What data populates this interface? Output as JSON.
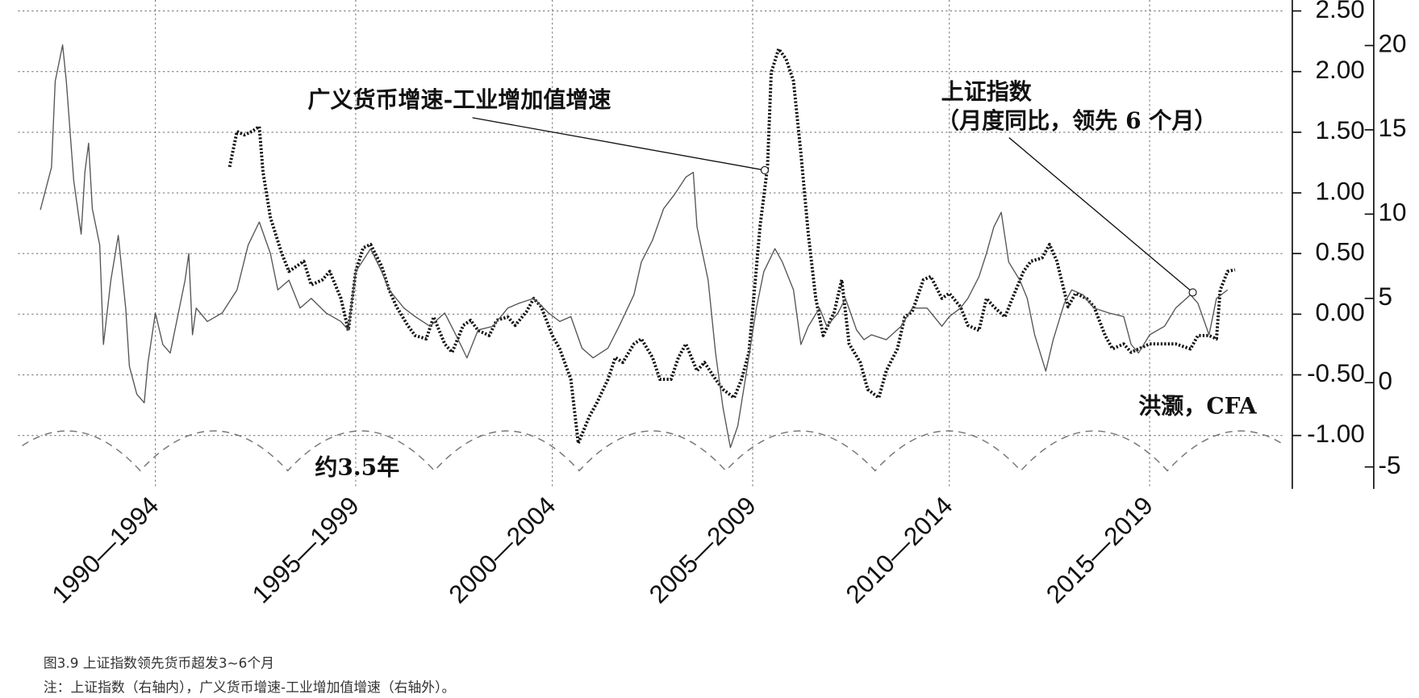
{
  "chart_data": {
    "type": "line",
    "xlim": [
      1989,
      2023.15
    ],
    "xticks": [
      {
        "value": 1992.7,
        "label": "1990—1994"
      },
      {
        "value": 1998.1,
        "label": "1995—1999"
      },
      {
        "value": 2003.4,
        "label": "2000—2004"
      },
      {
        "value": 2008.8,
        "label": "2005—2009"
      },
      {
        "value": 2014.1,
        "label": "2010—2014"
      },
      {
        "value": 2019.5,
        "label": "2015—2019"
      }
    ],
    "ylim": [
      -1.44,
      2.59
    ],
    "yticks": [
      {
        "value": 2.5,
        "label": "2.50"
      },
      {
        "value": 2,
        "label": "2.00"
      },
      {
        "value": 1.5,
        "label": "1.50"
      },
      {
        "value": 1,
        "label": "1.00"
      },
      {
        "value": 0.5,
        "label": "0.50"
      },
      {
        "value": 0,
        "label": "0.00"
      },
      {
        "value": -0.5,
        "label": "-0.50"
      },
      {
        "value": -1,
        "label": "-1.00"
      }
    ],
    "y2lim": [
      -6.3,
      22.7
    ],
    "y2ticks": [
      20,
      15,
      10,
      5,
      0,
      -5
    ],
    "grid": true,
    "series": [
      {
        "name": "广义货币增速-工业增加值增速",
        "color": "#111111",
        "line_style": "dotted",
        "axis": "y2",
        "x": [
          1994.7,
          1994.9,
          1995.1,
          1995.3,
          1995.5,
          1995.6,
          1995.8,
          1996.1,
          1996.3,
          1996.7,
          1996.9,
          1997.2,
          1997.4,
          1997.7,
          1997.9,
          1998.1,
          1998.3,
          1998.5,
          1998.8,
          1999.0,
          1999.2,
          1999.5,
          1999.7,
          2000.0,
          2000.2,
          2000.5,
          2000.7,
          2001.0,
          2001.2,
          2001.4,
          2001.7,
          2001.9,
          2002.2,
          2002.4,
          2002.7,
          2002.9,
          2003.1,
          2003.4,
          2003.6,
          2003.9,
          2004.1,
          2004.4,
          2004.6,
          2004.9,
          2005.1,
          2005.3,
          2005.6,
          2005.8,
          2006.1,
          2006.3,
          2006.6,
          2006.8,
          2007.0,
          2007.3,
          2007.5,
          2007.8,
          2008.0,
          2008.3,
          2008.5,
          2008.7,
          2009.0,
          2009.2,
          2009.3,
          2009.5,
          2009.7,
          2009.9,
          2010.1,
          2010.3,
          2010.5,
          2010.7,
          2011.0,
          2011.2,
          2011.4,
          2011.7,
          2011.9,
          2012.2,
          2012.4,
          2012.7,
          2012.9,
          2013.1,
          2013.4,
          2013.6,
          2013.9,
          2014.1,
          2014.4,
          2014.6,
          2014.9,
          2015.1,
          2015.3,
          2015.6,
          2015.8,
          2016.1,
          2016.3,
          2016.6,
          2016.8,
          2017.0,
          2017.3,
          2017.5,
          2017.8,
          2018.0,
          2018.3,
          2018.5,
          2018.8,
          2019.0,
          2019.2,
          2019.5,
          2019.9,
          2020.2,
          2020.6,
          2020.8,
          2021.1,
          2021.3,
          2021.4,
          2021.6,
          2021.8
        ],
        "values": [
          12.8,
          14.9,
          14.7,
          14.9,
          15.2,
          12.5,
          9.8,
          7.7,
          6.6,
          7.2,
          5.8,
          6.1,
          6.6,
          5.0,
          3.1,
          6.6,
          8.0,
          8.2,
          6.9,
          5.5,
          4.5,
          3.4,
          2.8,
          2.6,
          3.9,
          2.3,
          1.8,
          3.4,
          3.7,
          3.1,
          2.8,
          3.7,
          3.9,
          3.4,
          4.2,
          5.0,
          4.5,
          2.8,
          2.0,
          0.2,
          -3.6,
          -2.0,
          -1.2,
          0.2,
          1.5,
          1.2,
          2.3,
          2.6,
          1.5,
          0.2,
          0.2,
          1.5,
          2.3,
          0.7,
          1.2,
          0.2,
          -0.4,
          -0.9,
          0.2,
          1.8,
          9.3,
          12.8,
          18.4,
          19.8,
          19.2,
          17.9,
          13.6,
          8.8,
          5.0,
          2.8,
          4.2,
          6.1,
          2.3,
          1.2,
          -0.4,
          -0.9,
          0.7,
          2.0,
          3.9,
          4.2,
          6.1,
          6.3,
          5.0,
          5.3,
          4.5,
          3.4,
          3.1,
          5.0,
          4.5,
          3.9,
          5.0,
          6.6,
          7.2,
          7.4,
          8.2,
          7.2,
          4.5,
          5.3,
          5.0,
          4.5,
          2.8,
          2.0,
          2.3,
          1.8,
          2.0,
          2.3,
          2.3,
          2.3,
          2.0,
          2.8,
          2.8,
          2.6,
          5.5,
          6.6,
          6.7
        ]
      },
      {
        "name": "上证指数",
        "note": "（月度同比，领先 6 个月）",
        "color": "#555555",
        "line_style": "solid",
        "x": [
          1989.6,
          1989.9,
          1990.0,
          1990.2,
          1990.3,
          1990.5,
          1990.7,
          1990.8,
          1990.9,
          1991.0,
          1991.2,
          1991.3,
          1991.5,
          1991.7,
          1991.9,
          1992.0,
          1992.2,
          1992.4,
          1992.5,
          1992.7,
          1992.9,
          1993.1,
          1993.3,
          1993.5,
          1993.6,
          1993.7,
          1993.8,
          1994.1,
          1994.5,
          1994.9,
          1995.2,
          1995.5,
          1995.8,
          1996.0,
          1996.3,
          1996.6,
          1996.9,
          1997.3,
          1997.7,
          1997.9,
          1998.1,
          1998.5,
          1998.8,
          1999.0,
          1999.4,
          1999.7,
          2000.1,
          2000.5,
          2000.8,
          2001.1,
          2001.4,
          2001.8,
          2002.2,
          2002.5,
          2002.9,
          2003.3,
          2003.6,
          2003.9,
          2004.2,
          2004.5,
          2004.9,
          2005.2,
          2005.6,
          2005.8,
          2006.1,
          2006.4,
          2006.7,
          2007.0,
          2007.2,
          2007.3,
          2007.6,
          2007.8,
          2008.0,
          2008.2,
          2008.4,
          2008.6,
          2008.9,
          2009.1,
          2009.4,
          2009.6,
          2009.9,
          2010.1,
          2010.3,
          2010.6,
          2010.8,
          2011.1,
          2011.3,
          2011.6,
          2011.8,
          2012.0,
          2012.4,
          2012.8,
          2013.1,
          2013.5,
          2013.9,
          2014.1,
          2014.4,
          2014.6,
          2014.9,
          2015.1,
          2015.3,
          2015.5,
          2015.7,
          2016.0,
          2016.2,
          2016.4,
          2016.7,
          2016.9,
          2017.2,
          2017.4,
          2017.7,
          2018.0,
          2018.4,
          2018.8,
          2019.0,
          2019.2,
          2019.5,
          2019.9,
          2020.2,
          2020.6,
          2020.8,
          2021.1,
          2021.3,
          2021.6
        ],
        "values": [
          0.86,
          1.21,
          1.92,
          2.22,
          1.92,
          1.1,
          0.66,
          1.17,
          1.41,
          0.87,
          0.57,
          -0.25,
          0.28,
          0.65,
          0.05,
          -0.43,
          -0.66,
          -0.73,
          -0.4,
          0.01,
          -0.25,
          -0.32,
          -0.02,
          0.28,
          0.5,
          -0.17,
          0.05,
          -0.06,
          0.01,
          0.2,
          0.57,
          0.76,
          0.5,
          0.2,
          0.28,
          0.05,
          0.13,
          0.01,
          -0.06,
          -0.13,
          0.35,
          0.54,
          0.35,
          0.2,
          0.05,
          -0.02,
          -0.1,
          0.01,
          -0.17,
          -0.36,
          -0.13,
          -0.1,
          0.05,
          0.09,
          0.13,
          0.01,
          -0.06,
          -0.02,
          -0.28,
          -0.36,
          -0.28,
          -0.1,
          0.16,
          0.43,
          0.61,
          0.87,
          0.99,
          1.13,
          1.17,
          0.72,
          0.28,
          -0.32,
          -0.77,
          -1.1,
          -0.92,
          -0.54,
          0.05,
          0.35,
          0.54,
          0.43,
          0.2,
          -0.25,
          -0.1,
          0.05,
          -0.1,
          0.01,
          0.13,
          -0.13,
          -0.21,
          -0.17,
          -0.21,
          -0.1,
          0.05,
          0.05,
          -0.1,
          -0.02,
          0.05,
          0.13,
          0.31,
          0.5,
          0.72,
          0.84,
          0.43,
          0.28,
          0.13,
          -0.17,
          -0.47,
          -0.21,
          0.09,
          0.2,
          0.16,
          0.05,
          0.01,
          -0.02,
          -0.25,
          -0.32,
          -0.17,
          -0.1,
          0.05,
          0.16,
          0.09,
          -0.17,
          0.13,
          0.2
        ]
      }
    ],
    "annotations": [
      "洪灏，CFA",
      "约3.5年"
    ]
  },
  "figure": {
    "caption": "图3.9 上证指数领先货币超发3~6个月",
    "note": "注：上证指数（右轴内），广义货币增速-工业增加值增速（右轴外）。"
  }
}
